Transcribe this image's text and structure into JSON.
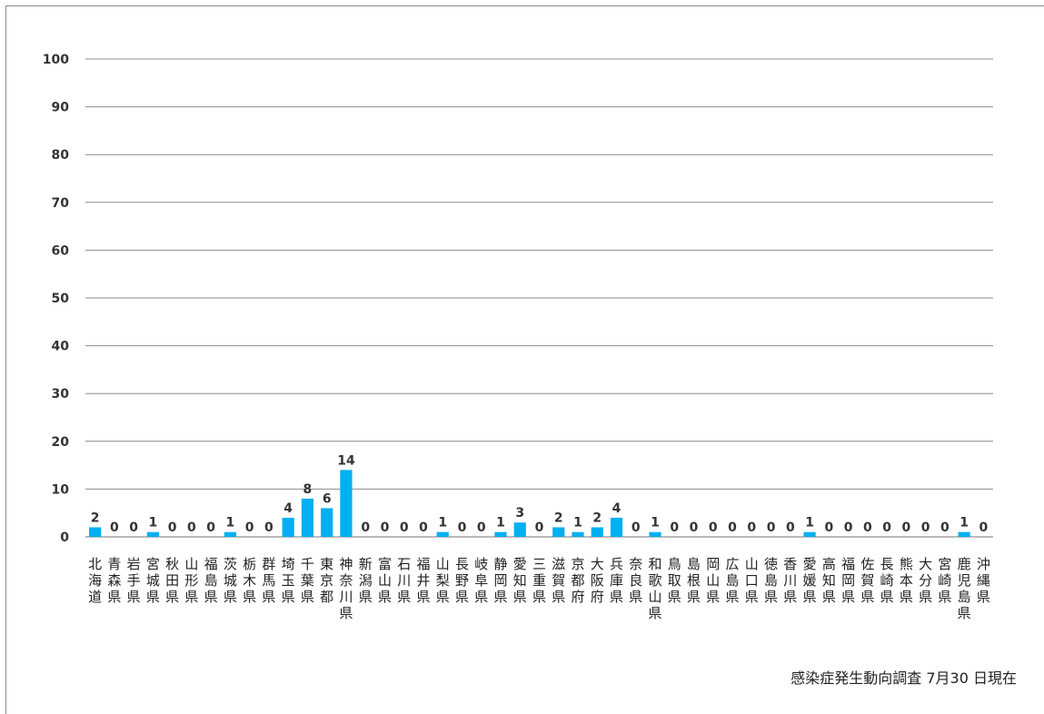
{
  "caption": {
    "survey": "感染症発生動向調査",
    "date": "7月30 日現在"
  },
  "chart_data": {
    "type": "bar",
    "title": "",
    "xlabel": "",
    "ylabel": "",
    "ylim": [
      0,
      100
    ],
    "yticks": [
      0,
      10,
      20,
      30,
      40,
      50,
      60,
      70,
      80,
      90,
      100
    ],
    "grid": true,
    "bar_color": "#00b0f0",
    "categories": [
      "北海道",
      "青森県",
      "岩手県",
      "宮城県",
      "秋田県",
      "山形県",
      "福島県",
      "茨城県",
      "栃木県",
      "群馬県",
      "埼玉県",
      "千葉県",
      "東京都",
      "神奈川県",
      "新潟県",
      "富山県",
      "石川県",
      "福井県",
      "山梨県",
      "長野県",
      "岐阜県",
      "静岡県",
      "愛知県",
      "三重県",
      "滋賀県",
      "京都府",
      "大阪府",
      "兵庫県",
      "奈良県",
      "和歌山県",
      "鳥取県",
      "島根県",
      "岡山県",
      "広島県",
      "山口県",
      "徳島県",
      "香川県",
      "愛媛県",
      "高知県",
      "福岡県",
      "佐賀県",
      "長崎県",
      "熊本県",
      "大分県",
      "宮崎県",
      "鹿児島県",
      "沖縄県"
    ],
    "values": [
      2,
      0,
      0,
      1,
      0,
      0,
      0,
      1,
      0,
      0,
      4,
      8,
      6,
      14,
      0,
      0,
      0,
      0,
      1,
      0,
      0,
      1,
      3,
      0,
      2,
      1,
      2,
      4,
      0,
      1,
      0,
      0,
      0,
      0,
      0,
      0,
      0,
      1,
      0,
      0,
      0,
      0,
      0,
      0,
      0,
      1,
      0
    ]
  }
}
